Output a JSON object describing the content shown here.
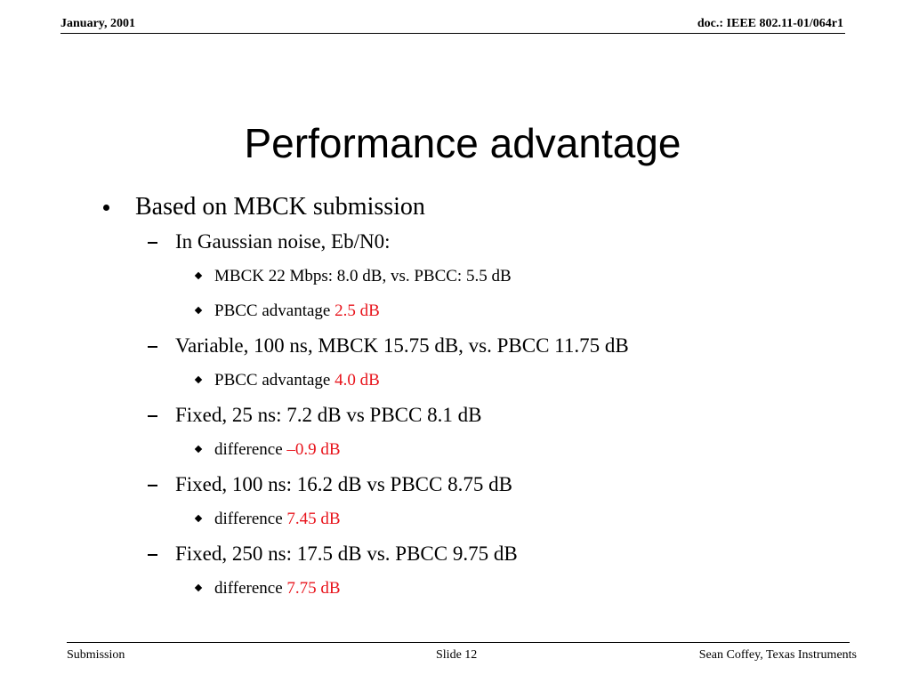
{
  "header": {
    "date": "January, 2001",
    "doc": "doc.: IEEE 802.11-01/064r1"
  },
  "title": "Performance advantage",
  "items": [
    {
      "level": 1,
      "text": "Based on MBCK submission"
    },
    {
      "level": 2,
      "text": "In Gaussian noise, Eb/N0:"
    },
    {
      "level": 3,
      "text": "MBCK 22 Mbps: 8.0 dB, vs. PBCC: 5.5 dB"
    },
    {
      "level": 3,
      "text": "PBCC advantage",
      "highlight": "2.5 dB"
    },
    {
      "level": 2,
      "text": "Variable, 100 ns, MBCK 15.75 dB, vs. PBCC 11.75 dB"
    },
    {
      "level": 3,
      "text": "PBCC advantage",
      "highlight": "4.0 dB"
    },
    {
      "level": 2,
      "text": "Fixed, 25 ns: 7.2 dB vs PBCC 8.1 dB"
    },
    {
      "level": 3,
      "text": "difference",
      "highlight": "–0.9 dB"
    },
    {
      "level": 2,
      "text": "Fixed, 100 ns: 16.2 dB vs PBCC 8.75 dB"
    },
    {
      "level": 3,
      "text": "difference",
      "highlight": "7.45 dB"
    },
    {
      "level": 2,
      "text": "Fixed, 250 ns: 17.5 dB vs. PBCC 9.75 dB"
    },
    {
      "level": 3,
      "text": "difference",
      "highlight": "7.75 dB"
    }
  ],
  "footer": {
    "left": "Submission",
    "center": "Slide 12",
    "right": "Sean Coffey, Texas Instruments"
  }
}
